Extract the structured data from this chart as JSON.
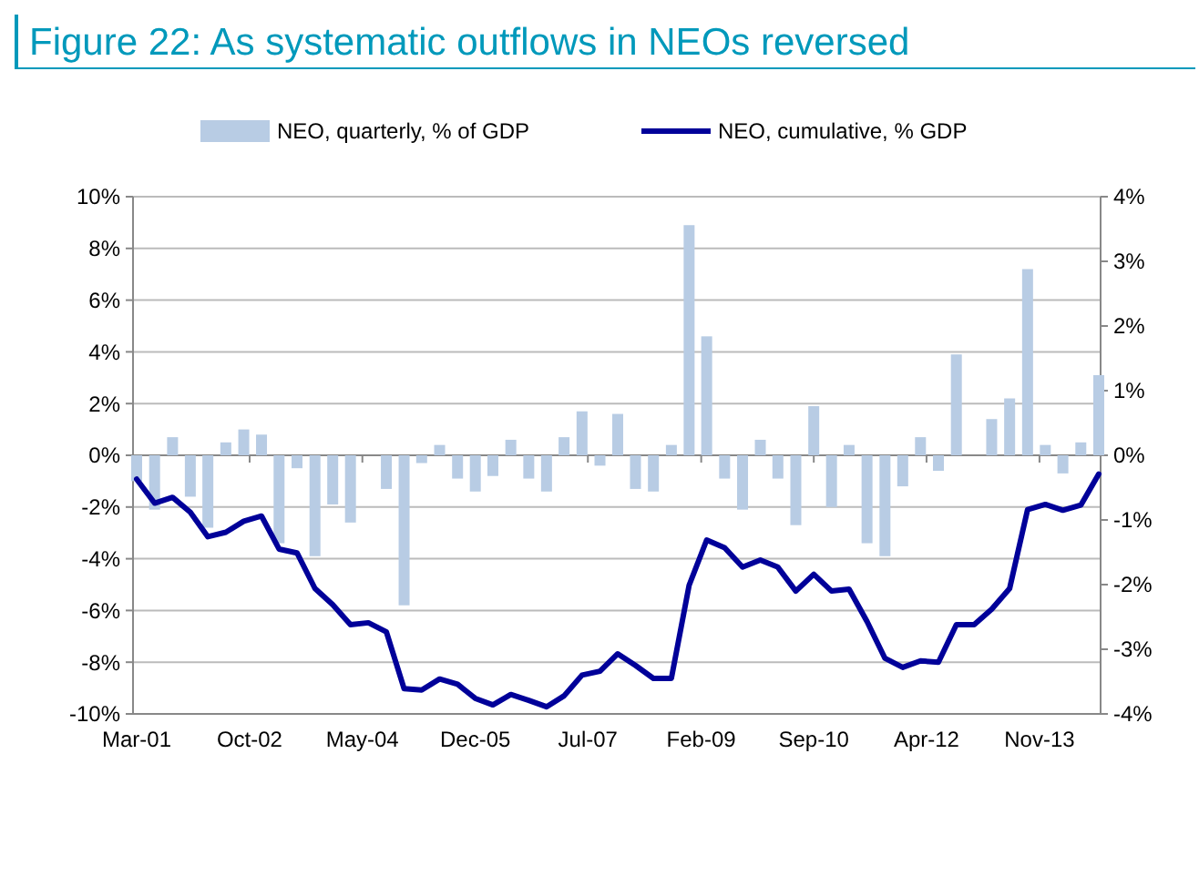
{
  "chart_data": {
    "type": "bar",
    "title": "Figure 22: As systematic outflows in NEOs reversed",
    "x": [
      "2001-03",
      "2001-06",
      "2001-09",
      "2001-12",
      "2002-03",
      "2002-06",
      "2002-09",
      "2002-12",
      "2003-03",
      "2003-06",
      "2003-09",
      "2003-12",
      "2004-03",
      "2004-06",
      "2004-09",
      "2004-12",
      "2005-03",
      "2005-06",
      "2005-09",
      "2005-12",
      "2006-03",
      "2006-06",
      "2006-09",
      "2006-12",
      "2007-03",
      "2007-06",
      "2007-09",
      "2007-12",
      "2008-03",
      "2008-06",
      "2008-09",
      "2008-12",
      "2009-03",
      "2009-06",
      "2009-09",
      "2009-12",
      "2010-03",
      "2010-06",
      "2010-09",
      "2010-12",
      "2011-03",
      "2011-06",
      "2011-09",
      "2011-12",
      "2012-03",
      "2012-06",
      "2012-09",
      "2012-12",
      "2013-03",
      "2013-06",
      "2013-09",
      "2013-12",
      "2014-03",
      "2014-06",
      "2014-09"
    ],
    "series": [
      {
        "name": "NEO, quarterly, % of GDP",
        "color": "#b8cce4",
        "values": [
          -1.0,
          -2.1,
          0.7,
          -1.6,
          -2.8,
          0.5,
          1.0,
          0.8,
          -3.4,
          -0.5,
          -3.9,
          -1.9,
          -2.6,
          0,
          -1.3,
          -5.8,
          -0.3,
          0.4,
          -0.9,
          -1.4,
          -0.8,
          0.6,
          -0.9,
          -1.4,
          0.7,
          1.7,
          -0.4,
          1.6,
          -1.3,
          -1.4,
          0.4,
          8.9,
          4.6,
          -0.9,
          -2.1,
          0.6,
          -0.9,
          -2.7,
          1.9,
          -2.0,
          0.4,
          -3.4,
          -3.9,
          -1.2,
          0.7,
          -0.6,
          3.9,
          0,
          1.4,
          2.2,
          7.2,
          0.4,
          -0.7,
          0.5,
          3.1
        ]
      },
      {
        "name": "NEO, cumulative, % GDP",
        "type": "line",
        "axis": "y2",
        "color": "#000099",
        "values": [
          -0.37,
          -0.74,
          -0.65,
          -0.88,
          -1.26,
          -1.19,
          -1.02,
          -0.94,
          -1.45,
          -1.51,
          -2.06,
          -2.31,
          -2.62,
          -2.59,
          -2.73,
          -3.61,
          -3.63,
          -3.46,
          -3.54,
          -3.76,
          -3.86,
          -3.7,
          -3.79,
          -3.89,
          -3.72,
          -3.4,
          -3.34,
          -3.07,
          -3.25,
          -3.45,
          -3.45,
          -2.01,
          -1.31,
          -1.43,
          -1.73,
          -1.62,
          -1.73,
          -2.1,
          -1.84,
          -2.1,
          -2.07,
          -2.57,
          -3.14,
          -3.28,
          -3.18,
          -3.2,
          -2.62,
          -2.62,
          -2.38,
          -2.06,
          -0.84,
          -0.76,
          -0.85,
          -0.77,
          -0.29
        ]
      }
    ],
    "xlim": [
      "2001-03",
      "2014-09"
    ],
    "xticks": [
      {
        "value": "2001-03",
        "label": "Mar-01"
      },
      {
        "value": "2002-10",
        "label": "Oct-02"
      },
      {
        "value": "2004-05",
        "label": "May-04"
      },
      {
        "value": "2005-12",
        "label": "Dec-05"
      },
      {
        "value": "2007-07",
        "label": "Jul-07"
      },
      {
        "value": "2009-02",
        "label": "Feb-09"
      },
      {
        "value": "2010-09",
        "label": "Sep-10"
      },
      {
        "value": "2012-04",
        "label": "Apr-12"
      },
      {
        "value": "2013-11",
        "label": "Nov-13"
      }
    ],
    "ylim": [
      -10,
      10
    ],
    "yticks": [
      {
        "value": -10,
        "label": "-10%"
      },
      {
        "value": -8,
        "label": "-8%"
      },
      {
        "value": -6,
        "label": "-6%"
      },
      {
        "value": -4,
        "label": "-4%"
      },
      {
        "value": -2,
        "label": "-2%"
      },
      {
        "value": 0,
        "label": "0%"
      },
      {
        "value": 2,
        "label": "2%"
      },
      {
        "value": 4,
        "label": "4%"
      },
      {
        "value": 6,
        "label": "6%"
      },
      {
        "value": 8,
        "label": "8%"
      },
      {
        "value": 10,
        "label": "10%"
      }
    ],
    "y2lim": [
      -4,
      4
    ],
    "y2ticks": [
      {
        "value": -4,
        "label": "-4%"
      },
      {
        "value": -3,
        "label": "-3%"
      },
      {
        "value": -2,
        "label": "-2%"
      },
      {
        "value": -1,
        "label": "-1%"
      },
      {
        "value": 0,
        "label": "0%"
      },
      {
        "value": 1,
        "label": "1%"
      },
      {
        "value": 2,
        "label": "2%"
      },
      {
        "value": 3,
        "label": "3%"
      },
      {
        "value": 4,
        "label": "4%"
      }
    ],
    "grid": "y",
    "legend": "top"
  }
}
